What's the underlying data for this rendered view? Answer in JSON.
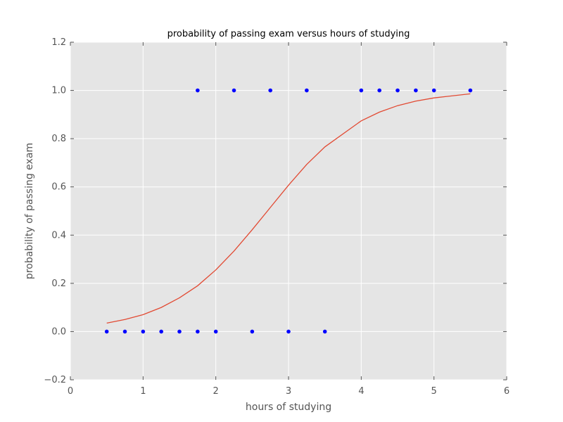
{
  "chart_data": {
    "type": "scatter",
    "title": "probability of passing exam versus hours of studying",
    "xlabel": "hours of studying",
    "ylabel": "probability of passing exam",
    "xlim": [
      0,
      6
    ],
    "ylim": [
      -0.2,
      1.2
    ],
    "xticks": [
      "0",
      "1",
      "2",
      "3",
      "4",
      "5",
      "6"
    ],
    "yticks": [
      "−0.2",
      "0.0",
      "0.2",
      "0.4",
      "0.6",
      "0.8",
      "1.0",
      "1.2"
    ],
    "grid": true,
    "colors": {
      "background": "#e5e5e5",
      "grid": "#ffffff",
      "points": "#0000ff",
      "curve": "#e24a33"
    },
    "series": [
      {
        "kind": "scatter",
        "x": [
          0.5,
          0.75,
          1.0,
          1.25,
          1.5,
          1.75,
          1.75,
          2.0,
          2.25,
          2.5,
          2.75,
          3.0,
          3.25,
          3.5,
          4.0,
          4.25,
          4.5,
          4.75,
          5.0,
          5.5
        ],
        "y": [
          0,
          0,
          0,
          0,
          0,
          0,
          1,
          0,
          1,
          0,
          1,
          0,
          1,
          0,
          1,
          1,
          1,
          1,
          1,
          1
        ]
      },
      {
        "kind": "line",
        "x": [
          0.5,
          0.75,
          1.0,
          1.25,
          1.5,
          1.75,
          2.0,
          2.25,
          2.5,
          2.75,
          3.0,
          3.25,
          3.5,
          4.0,
          4.25,
          4.5,
          4.75,
          5.0,
          5.5
        ],
        "y": [
          0.035,
          0.05,
          0.07,
          0.1,
          0.14,
          0.19,
          0.256,
          0.334,
          0.422,
          0.515,
          0.607,
          0.693,
          0.766,
          0.874,
          0.91,
          0.937,
          0.956,
          0.969,
          0.986
        ]
      }
    ]
  }
}
